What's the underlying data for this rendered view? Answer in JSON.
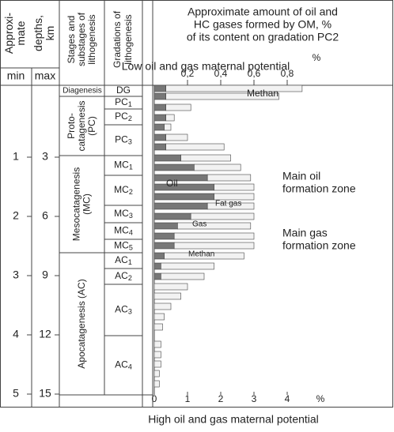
{
  "header": {
    "title": [
      "Approximate amount of oil and",
      "HC gases formed by OM, %",
      "of its content on gradation PC2"
    ],
    "depth_title_a": [
      "Approxi-",
      "mate"
    ],
    "depth_title_b": [
      "depths,",
      "km"
    ],
    "min": "min",
    "max": "max",
    "stages_title": [
      "Stages and",
      "substages of",
      "lithogenesis"
    ],
    "gradations_title": [
      "Gradations of",
      "lithogenesis"
    ]
  },
  "top_axis": {
    "label": "Low oil and gas maternal potential",
    "ticks": [
      {
        "value": 0.2,
        "label": "0,2"
      },
      {
        "value": 0.4,
        "label": "0,4"
      },
      {
        "value": 0.6,
        "label": "0,6"
      },
      {
        "value": 0.8,
        "label": "0,8"
      }
    ],
    "unit": "%"
  },
  "bottom_axis": {
    "label": "High oil and gas maternal potential",
    "ticks": [
      0,
      1,
      2,
      3,
      4
    ],
    "unit": "%"
  },
  "depth_min_ticks": [
    1,
    2,
    3,
    4,
    5
  ],
  "depth_max_ticks": [
    3,
    6,
    9,
    12,
    15
  ],
  "stages": [
    {
      "lines": [
        "Diagenesis"
      ]
    },
    {
      "lines": [
        "Proto-",
        "catagenesis",
        "(PC)"
      ]
    },
    {
      "lines": [
        "Mesocatagenesis",
        "(MC)"
      ]
    },
    {
      "lines": [
        "Apocatagenesis (AC)"
      ]
    }
  ],
  "gradations": [
    {
      "name": "DG",
      "index": ""
    },
    {
      "name": "PC",
      "index": "1"
    },
    {
      "name": "PC",
      "index": "2"
    },
    {
      "name": "PC",
      "index": "3"
    },
    {
      "name": "MC",
      "index": "1"
    },
    {
      "name": "MC",
      "index": "2"
    },
    {
      "name": "MC",
      "index": "3"
    },
    {
      "name": "MC",
      "index": "4"
    },
    {
      "name": "MC",
      "index": "5"
    },
    {
      "name": "AC",
      "index": "1"
    },
    {
      "name": "AC",
      "index": "2"
    },
    {
      "name": "AC",
      "index": "3"
    },
    {
      "name": "AC",
      "index": "4"
    }
  ],
  "bars": {
    "oil": [
      0.35,
      0.35,
      0.35,
      0.35,
      0.3,
      0.35,
      0.35,
      0.8,
      1.2,
      1.6,
      1.8,
      1.8,
      1.6,
      1.1,
      0.7,
      0.6,
      0.6,
      0.3,
      0.2,
      0.2,
      0,
      0,
      0,
      0,
      0,
      0,
      0,
      0,
      0,
      0
    ],
    "gas": [
      4.1,
      3.4,
      0.75,
      0.25,
      0.2,
      0.65,
      1.75,
      1.5,
      1.4,
      1.3,
      1.2,
      1.2,
      1.4,
      1.9,
      2.2,
      2.4,
      2.4,
      2.4,
      1.6,
      1.3,
      1.0,
      0.8,
      0.5,
      0.3,
      0.25,
      0.2,
      0.2,
      0.2,
      0.15,
      0.15
    ]
  },
  "annotations": {
    "methan_top": "Methan",
    "oil": "Oil",
    "fat_gas": "Fat gas",
    "gas": "Gas",
    "methan_bottom": "Methan",
    "oil_zone": [
      "Main oil",
      "formation zone"
    ],
    "gas_zone": [
      "Main gas",
      "formation zone"
    ]
  }
}
